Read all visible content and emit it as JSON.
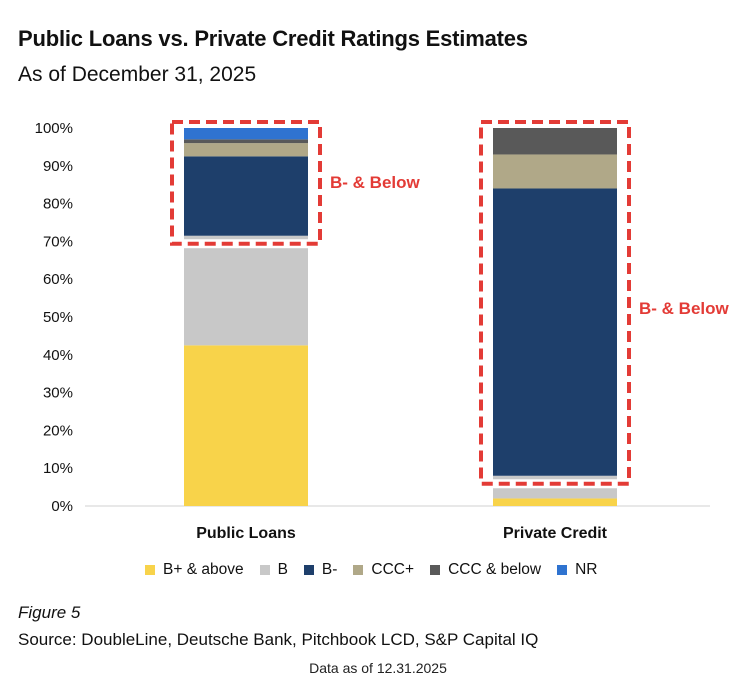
{
  "title": "Public Loans vs. Private Credit Ratings Estimates",
  "subtitle": "As of December 31, 2025",
  "figure_label": "Figure 5",
  "source": "Source: DoubleLine, Deutsche Bank, Pitchbook LCD, S&P Capital IQ",
  "data_as_of": "Data as of 12.31.2025",
  "chart_data": {
    "type": "bar",
    "stacked": true,
    "categories": [
      "Public Loans",
      "Private Credit"
    ],
    "ylim": [
      0,
      100
    ],
    "yticks": [
      "0%",
      "10%",
      "20%",
      "30%",
      "40%",
      "50%",
      "60%",
      "70%",
      "80%",
      "90%",
      "100%"
    ],
    "series": [
      {
        "name": "B+ & above",
        "color": "#f8d34a",
        "values": [
          42.5,
          2
        ]
      },
      {
        "name": "B",
        "color": "#c8c8c8",
        "values": [
          29,
          6
        ]
      },
      {
        "name": "B-",
        "color": "#1e3f6b",
        "values": [
          21,
          76
        ]
      },
      {
        "name": "CCC+",
        "color": "#b0a888",
        "values": [
          3.5,
          9
        ]
      },
      {
        "name": "CCC & below",
        "color": "#595959",
        "values": [
          1,
          7
        ]
      },
      {
        "name": "NR",
        "color": "#2f73d0",
        "values": [
          3,
          0
        ]
      }
    ],
    "annotations": [
      {
        "text": "B- & Below",
        "category": "Public Loans",
        "range": [
          71.5,
          100
        ]
      },
      {
        "text": "B- & Below",
        "category": "Private Credit",
        "range": [
          8,
          100
        ]
      }
    ],
    "annotation_color": "#e33b36",
    "legend_position": "bottom"
  }
}
